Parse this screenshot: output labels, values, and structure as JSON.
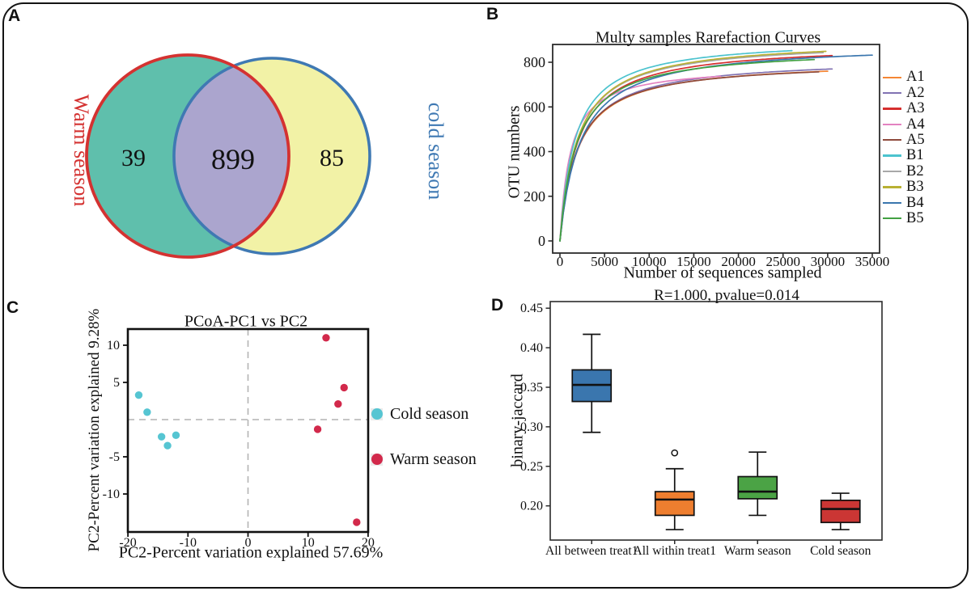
{
  "figure": {
    "background": "#ffffff",
    "border_color": "#141414"
  },
  "panels": {
    "a": {
      "label": "A",
      "venn": {
        "left_label": "Warm season",
        "right_label": "cold season",
        "left_count": "39",
        "center_count": "899",
        "right_count": "85",
        "left_fill": "#5FBFAC",
        "right_fill": "#F2F2A6",
        "overlap_fill": "#ABA5CE",
        "left_stroke": "#D43231",
        "right_stroke": "#3F79B3"
      }
    },
    "b": {
      "label": "B",
      "title": "Multy samples Rarefaction Curves",
      "xlabel": "Number of sequences sampled",
      "ylabel": "OTU numbers"
    },
    "c": {
      "label": "C",
      "title": "PCoA-PC1 vs PC2",
      "xlabel": "PC2-Percent variation explained 57.69%",
      "ylabel": "PC2-Percent variation explained 9.28%",
      "legend": [
        {
          "label": "Cold season",
          "color": "#56C5D2"
        },
        {
          "label": "Warm season",
          "color": "#D2294B"
        }
      ]
    },
    "d": {
      "label": "D",
      "title": "R=1.000, pvalue=0.014",
      "ylabel": "binary-jaccard"
    }
  },
  "chart_data": [
    {
      "id": "venn",
      "type": "venn",
      "panel": "A",
      "title": "",
      "sets": [
        {
          "name": "Warm season",
          "unique": 39
        },
        {
          "name": "cold season",
          "unique": 85
        }
      ],
      "intersection": 899
    },
    {
      "id": "rarefaction",
      "type": "line",
      "panel": "B",
      "title": "Multy samples Rarefaction Curves",
      "xlabel": "Number of sequences sampled",
      "ylabel": "OTU numbers",
      "xlim": [
        0,
        36000
      ],
      "ylim": [
        0,
        880
      ],
      "xticks": [
        0,
        5000,
        10000,
        15000,
        20000,
        25000,
        30000,
        35000
      ],
      "yticks": [
        0,
        200,
        400,
        600,
        800
      ],
      "curve_shape": "saturating rarefaction curves rising steeply from (0,0) then plateauing toward the end point",
      "legend_position": "right",
      "series": [
        {
          "name": "A1",
          "color": "#F58634",
          "end_x": 30000,
          "end_y": 760
        },
        {
          "name": "A2",
          "color": "#8172B2",
          "end_x": 30500,
          "end_y": 770
        },
        {
          "name": "A3",
          "color": "#D62F2E",
          "end_x": 30500,
          "end_y": 830
        },
        {
          "name": "A4",
          "color": "#E382C1",
          "end_x": 18000,
          "end_y": 737
        },
        {
          "name": "A5",
          "color": "#8E4A3C",
          "end_x": 29000,
          "end_y": 757
        },
        {
          "name": "B1",
          "color": "#4CC3CE",
          "end_x": 26000,
          "end_y": 852
        },
        {
          "name": "B2",
          "color": "#A8A8A8",
          "end_x": 29500,
          "end_y": 843
        },
        {
          "name": "B3",
          "color": "#B9B133",
          "end_x": 29800,
          "end_y": 849
        },
        {
          "name": "B4",
          "color": "#3A76AE",
          "end_x": 35000,
          "end_y": 832
        },
        {
          "name": "B5",
          "color": "#42A142",
          "end_x": 28500,
          "end_y": 812
        }
      ]
    },
    {
      "id": "pcoa",
      "type": "scatter",
      "panel": "C",
      "title": "PCoA-PC1 vs PC2",
      "xlabel": "PC2-Percent variation explained 57.69%",
      "ylabel": "PC2-Percent variation explained 9.28%",
      "xlim": [
        -20,
        20
      ],
      "ylim": [
        -15.1,
        12.2
      ],
      "xticks": [
        -20,
        -10,
        0,
        10,
        20
      ],
      "yticks": [
        10,
        5,
        -5,
        -10
      ],
      "zero_lines": "dashed gray crosshair at x=0 and y=0",
      "legend_position": "right",
      "series": [
        {
          "name": "Cold season",
          "color": "#56C5D2",
          "points": [
            [
              -18.2,
              3.3
            ],
            [
              -16.8,
              1.0
            ],
            [
              -14.4,
              -2.3
            ],
            [
              -13.4,
              -3.5
            ],
            [
              -12.0,
              -2.1
            ]
          ]
        },
        {
          "name": "Warm season",
          "color": "#D2294B",
          "points": [
            [
              13.0,
              11.0
            ],
            [
              16.0,
              4.3
            ],
            [
              15.0,
              2.1
            ],
            [
              11.6,
              -1.3
            ],
            [
              18.1,
              -13.8
            ]
          ]
        }
      ]
    },
    {
      "id": "jaccard-box",
      "type": "box",
      "panel": "D",
      "title": "R=1.000, pvalue=0.014",
      "ylabel": "binary-jaccard",
      "ylim": [
        0.158,
        0.46
      ],
      "yticks": [
        0.2,
        0.25,
        0.3,
        0.35,
        0.4,
        0.45
      ],
      "categories": [
        "All between treat1",
        "All within treat1",
        "Warm season",
        "Cold season"
      ],
      "boxes": [
        {
          "category": "All between treat1",
          "color": "#3A76AE",
          "low": 0.293,
          "q1": 0.332,
          "median": 0.353,
          "q3": 0.372,
          "high": 0.417,
          "outliers": []
        },
        {
          "category": "All within treat1",
          "color": "#EE7E2F",
          "low": 0.17,
          "q1": 0.188,
          "median": 0.208,
          "q3": 0.218,
          "high": 0.247,
          "outliers": [
            0.267
          ]
        },
        {
          "category": "Warm season",
          "color": "#4BA345",
          "low": 0.188,
          "q1": 0.209,
          "median": 0.218,
          "q3": 0.237,
          "high": 0.268,
          "outliers": []
        },
        {
          "category": "Cold season",
          "color": "#CB3634",
          "low": 0.17,
          "q1": 0.179,
          "median": 0.196,
          "q3": 0.207,
          "high": 0.216,
          "outliers": []
        }
      ]
    }
  ]
}
